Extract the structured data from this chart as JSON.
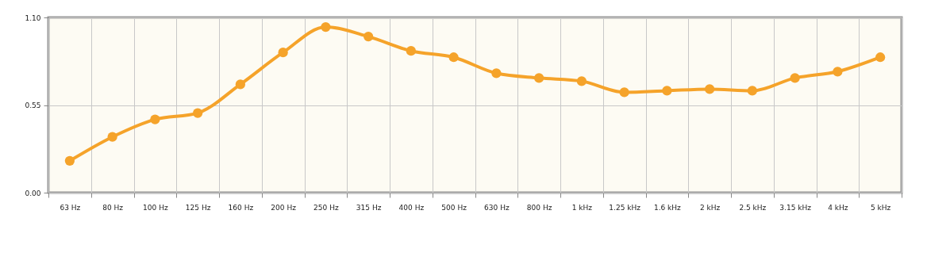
{
  "chart_data": {
    "type": "line",
    "categories": [
      "63 Hz",
      "80 Hz",
      "100 Hz",
      "125 Hz",
      "160 Hz",
      "200 Hz",
      "250 Hz",
      "315 Hz",
      "400 Hz",
      "500 Hz",
      "630 Hz",
      "800 Hz",
      "1 kHz",
      "1.25 kHz",
      "1.6 kHz",
      "2 kHz",
      "2.5 kHz",
      "3.15 kHz",
      "4 kHz",
      "5 kHz"
    ],
    "series": [
      {
        "color": "#f5a32a",
        "values": [
          0.2,
          0.35,
          0.46,
          0.5,
          0.68,
          0.88,
          1.04,
          0.98,
          0.89,
          0.85,
          0.75,
          0.72,
          0.7,
          0.63,
          0.64,
          0.65,
          0.64,
          0.72,
          0.76,
          0.85
        ]
      }
    ],
    "ylim": [
      0,
      1.1
    ],
    "yticks": [
      {
        "value": 0,
        "label": "0.00"
      },
      {
        "value": 0.55,
        "label": "0.55"
      },
      {
        "value": 1.1,
        "label": "1.10"
      }
    ],
    "grid": true,
    "marker": "circle",
    "line_style": "solid"
  }
}
